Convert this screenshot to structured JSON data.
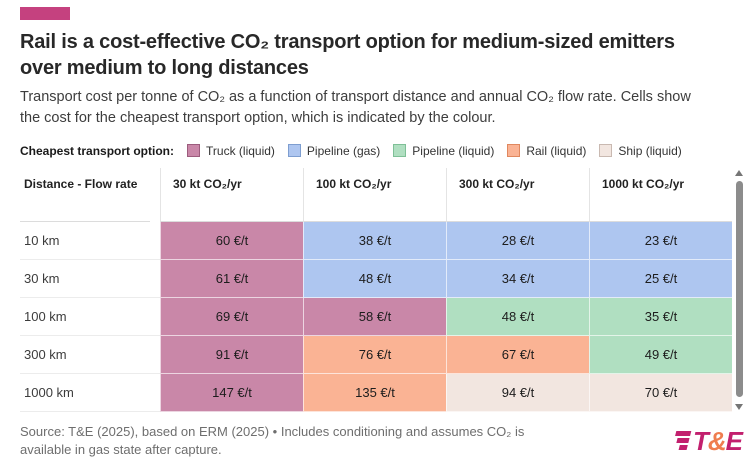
{
  "brand": {
    "accent_color": "#c5417f",
    "logo": {
      "t": "T",
      "amp": "&",
      "e": "E",
      "magenta": "#c2206e",
      "orange": "#ef7d4f"
    }
  },
  "header": {
    "title": "Rail is a cost-effective CO₂ transport option for medium-sized emitters over medium to long distances",
    "subtitle": "Transport cost per tonne of CO₂ as a function of transport distance and annual CO₂ flow rate. Cells show the cost for the cheapest transport option, which is indicated by the colour."
  },
  "legend": {
    "label": "Cheapest transport option:",
    "items": [
      {
        "label": "Truck (liquid)",
        "color": "#c987a8",
        "border": "#9c5c7d"
      },
      {
        "label": "Pipeline (gas)",
        "color": "#aec6f0",
        "border": "#7e9ed0"
      },
      {
        "label": "Pipeline (liquid)",
        "color": "#b0dfc1",
        "border": "#7fc097"
      },
      {
        "label": "Rail (liquid)",
        "color": "#fab394",
        "border": "#e0885f"
      },
      {
        "label": "Ship (liquid)",
        "color": "#f2e6e0",
        "border": "#c9b9b1"
      }
    ]
  },
  "chart_data": {
    "type": "heatmap",
    "title": "Rail is a cost-effective CO₂ transport option for medium-sized emitters over medium to long distances",
    "unit": "€/t",
    "corner_label": "Distance - Flow rate",
    "columns": [
      "30 kt CO₂/yr",
      "100 kt CO₂/yr",
      "300 kt CO₂/yr",
      "1000 kt CO₂/yr"
    ],
    "legend_title": "Cheapest transport option",
    "options": [
      "Truck (liquid)",
      "Pipeline (gas)",
      "Pipeline (liquid)",
      "Rail (liquid)",
      "Ship (liquid)"
    ],
    "rows": [
      {
        "label": "10 km",
        "cells": [
          {
            "text": "60 €/t",
            "value": 60,
            "option": "Truck (liquid)",
            "color": "#c987a8"
          },
          {
            "text": "38 €/t",
            "value": 38,
            "option": "Pipeline (gas)",
            "color": "#aec6f0"
          },
          {
            "text": "28 €/t",
            "value": 28,
            "option": "Pipeline (gas)",
            "color": "#aec6f0"
          },
          {
            "text": "23 €/t",
            "value": 23,
            "option": "Pipeline (gas)",
            "color": "#aec6f0"
          }
        ]
      },
      {
        "label": "30 km",
        "cells": [
          {
            "text": "61 €/t",
            "value": 61,
            "option": "Truck (liquid)",
            "color": "#c987a8"
          },
          {
            "text": "48 €/t",
            "value": 48,
            "option": "Pipeline (gas)",
            "color": "#aec6f0"
          },
          {
            "text": "34 €/t",
            "value": 34,
            "option": "Pipeline (gas)",
            "color": "#aec6f0"
          },
          {
            "text": "25 €/t",
            "value": 25,
            "option": "Pipeline (gas)",
            "color": "#aec6f0"
          }
        ]
      },
      {
        "label": "100 km",
        "cells": [
          {
            "text": "69 €/t",
            "value": 69,
            "option": "Truck (liquid)",
            "color": "#c987a8"
          },
          {
            "text": "58 €/t",
            "value": 58,
            "option": "Truck (liquid)",
            "color": "#c987a8"
          },
          {
            "text": "48 €/t",
            "value": 48,
            "option": "Pipeline (liquid)",
            "color": "#b0dfc1"
          },
          {
            "text": "35 €/t",
            "value": 35,
            "option": "Pipeline (liquid)",
            "color": "#b0dfc1"
          }
        ]
      },
      {
        "label": "300 km",
        "cells": [
          {
            "text": "91 €/t",
            "value": 91,
            "option": "Truck (liquid)",
            "color": "#c987a8"
          },
          {
            "text": "76 €/t",
            "value": 76,
            "option": "Rail (liquid)",
            "color": "#fab394"
          },
          {
            "text": "67 €/t",
            "value": 67,
            "option": "Rail (liquid)",
            "color": "#fab394"
          },
          {
            "text": "49 €/t",
            "value": 49,
            "option": "Pipeline (liquid)",
            "color": "#b0dfc1"
          }
        ]
      },
      {
        "label": "1000 km",
        "cells": [
          {
            "text": "147 €/t",
            "value": 147,
            "option": "Truck (liquid)",
            "color": "#c987a8"
          },
          {
            "text": "135 €/t",
            "value": 135,
            "option": "Rail (liquid)",
            "color": "#fab394"
          },
          {
            "text": "94 €/t",
            "value": 94,
            "option": "Ship (liquid)",
            "color": "#f2e6e0"
          },
          {
            "text": "70 €/t",
            "value": 70,
            "option": "Ship (liquid)",
            "color": "#f2e6e0"
          }
        ]
      }
    ]
  },
  "footer": {
    "source": "Source: T&E (2025), based on ERM (2025) • Includes conditioning and assumes CO₂ is available in gas state after capture."
  }
}
